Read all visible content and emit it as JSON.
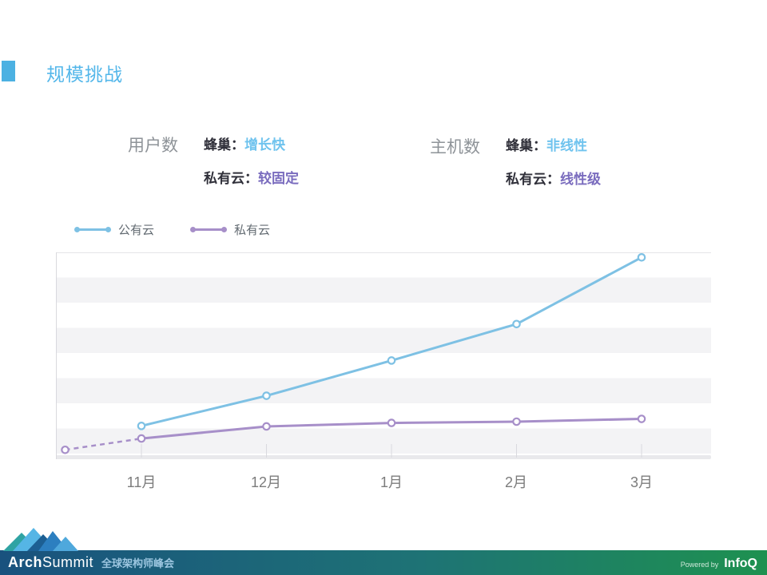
{
  "slide": {
    "title": "规模挑战"
  },
  "info_blocks": [
    {
      "heading": "用户数",
      "rows": [
        {
          "key": "蜂巢",
          "sep": "：",
          "value": "增长快",
          "value_color": "#6fc3ee"
        },
        {
          "key": "私有云",
          "sep": "：",
          "value": "较固定",
          "value_color": "#7a6cbe"
        }
      ]
    },
    {
      "heading": "主机数",
      "rows": [
        {
          "key": "蜂巢",
          "sep": "：",
          "value": "非线性",
          "value_color": "#6fc3ee"
        },
        {
          "key": "私有云",
          "sep": "：",
          "value": "线性级",
          "value_color": "#7a6cbe"
        }
      ]
    }
  ],
  "chart_data": {
    "type": "line",
    "categories": [
      "11月",
      "12月",
      "1月",
      "2月",
      "3月"
    ],
    "series": [
      {
        "name": "公有云",
        "color": "#7ec1e4",
        "values": [
          1.1,
          2.3,
          3.7,
          5.15,
          7.8
        ]
      },
      {
        "name": "私有云",
        "color": "#a78fc9",
        "values": [
          0.6,
          1.08,
          1.22,
          1.27,
          1.38
        ],
        "lead_in": {
          "x_offset": -0.61,
          "value": 0.15,
          "style": "dashed"
        }
      }
    ],
    "ylim": [
      0,
      8
    ],
    "y_axis_labels": false,
    "grid": "horizontal-bands",
    "legend_position": "top-left",
    "note": "values estimated in grid-band units; chart shows no y-axis tick labels"
  },
  "footer": {
    "brand_bold": "Arch",
    "brand_rest": "Summit",
    "brand_sub": "全球架构师峰会",
    "powered_by": "Powered by",
    "powered_brand": "InfoQ"
  },
  "colors": {
    "title_blue": "#54b7ea",
    "title_square": "#4cb1e2",
    "heading_gray": "#8e9398",
    "key_dark": "#30303a",
    "stripe_gray": "#f3f3f5",
    "axis_gray": "#d9d9de",
    "grid_top_line": "#e4e4e8",
    "x_label_gray": "#7c7c7c",
    "legend_label_gray": "#636b72",
    "footer_gradient_left": "#19527e",
    "footer_gradient_mid": "#1e7375",
    "footer_gradient_right": "#1e9150",
    "brand_sub_color": "#9cc6e0",
    "powered_by_color": "#cfe8da"
  }
}
